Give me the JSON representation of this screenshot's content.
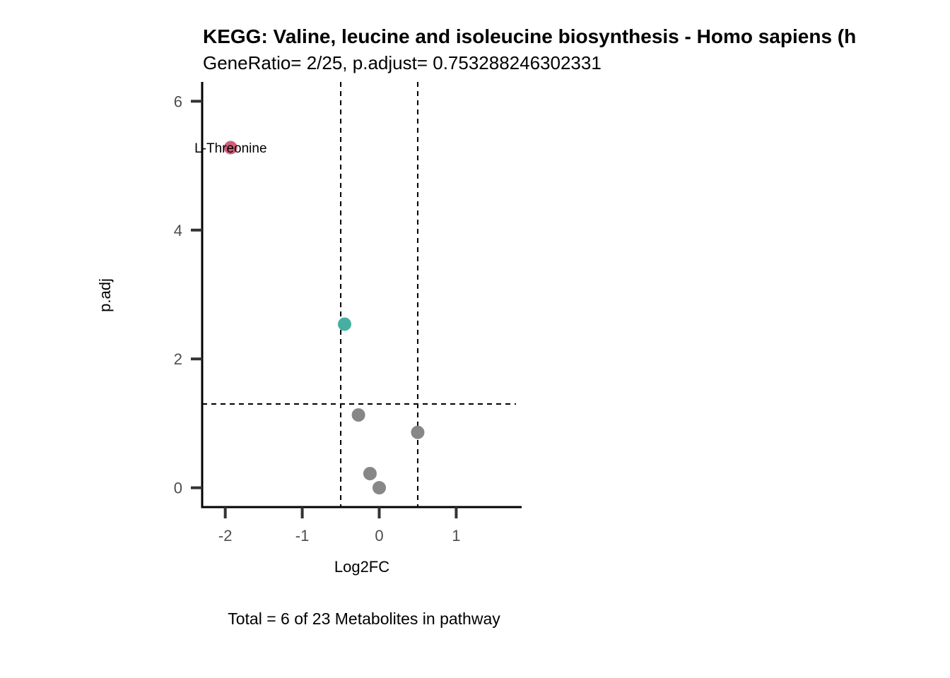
{
  "chart_data": {
    "type": "scatter",
    "title": "KEGG: Valine, leucine and isoleucine biosynthesis - Homo sapiens (h",
    "subtitle": "GeneRatio= 2/25, p.adjust= 0.753288246302331",
    "xlabel": "Log2FC",
    "ylabel": "p.adj",
    "caption": "Total = 6 of 23 Metabolites in pathway",
    "xlim": [
      -2.3,
      1.85
    ],
    "ylim": [
      -0.3,
      6.3
    ],
    "xticks": [
      -2,
      -1,
      0,
      1
    ],
    "yticks": [
      0,
      2,
      4,
      6
    ],
    "vlines": [
      -0.5,
      0.5
    ],
    "hline": 1.3,
    "grid": false,
    "colors": {
      "up_or_sig_high": "#d0607a",
      "sig": "#46b0a0",
      "nonsig": "#878787"
    },
    "points": [
      {
        "x": -1.93,
        "y": 5.28,
        "color": "#d0607a",
        "label": "L-Threonine"
      },
      {
        "x": -0.45,
        "y": 2.54,
        "color": "#46b0a0",
        "label": ""
      },
      {
        "x": -0.27,
        "y": 1.13,
        "color": "#878787",
        "label": ""
      },
      {
        "x": 0.5,
        "y": 0.86,
        "color": "#878787",
        "label": ""
      },
      {
        "x": -0.12,
        "y": 0.22,
        "color": "#878787",
        "label": ""
      },
      {
        "x": 0.0,
        "y": 0.0,
        "color": "#878787",
        "label": ""
      }
    ]
  }
}
